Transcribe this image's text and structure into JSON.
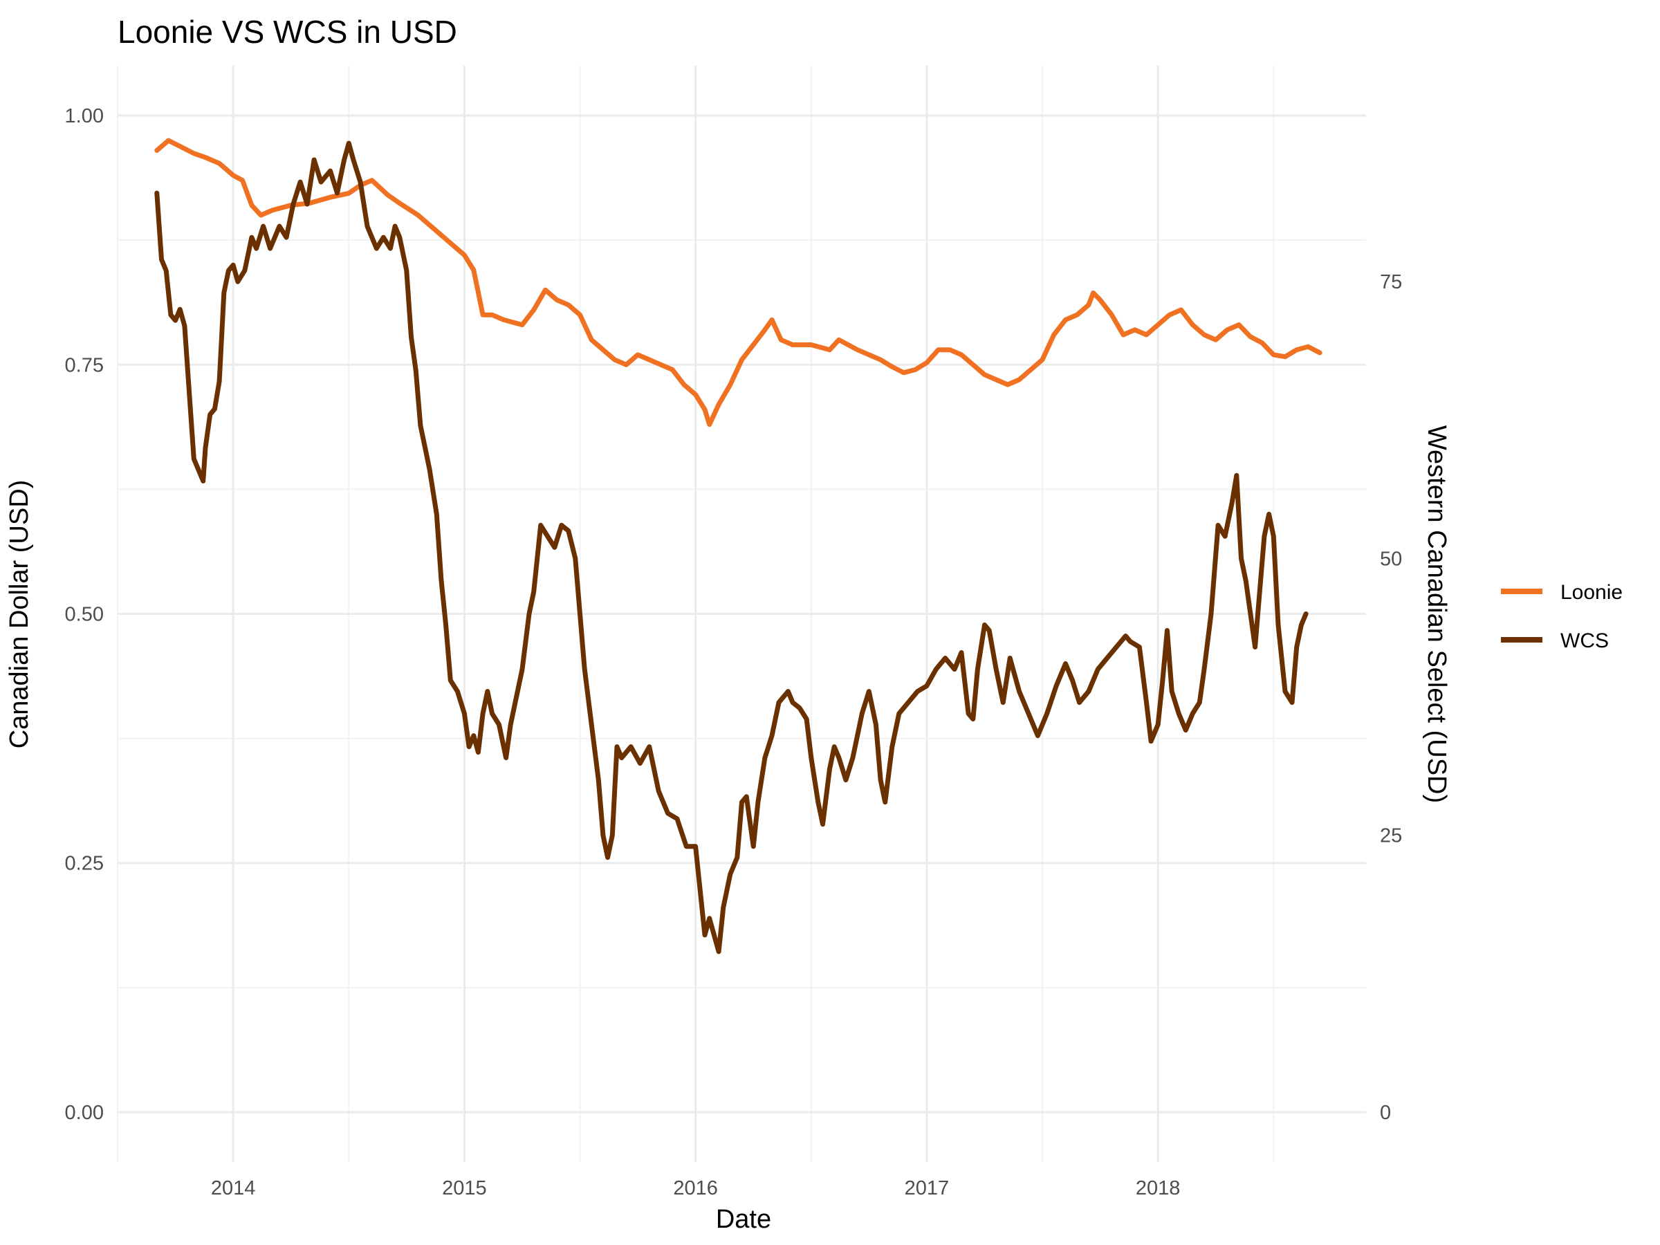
{
  "chart_data": {
    "type": "line",
    "title": "Loonie VS WCS in USD",
    "xlabel": "Date",
    "ylabel": "Canadian Dollar (USD)",
    "ylabel_right": "Western Canadian Select (USD)",
    "x_ticks": [
      "2014",
      "2015",
      "2016",
      "2017",
      "2018"
    ],
    "y_ticks_left": [
      "0.00",
      "0.25",
      "0.50",
      "0.75",
      "1.00"
    ],
    "y_ticks_right": [
      "0",
      "25",
      "50",
      "75"
    ],
    "xlim": [
      2013.5,
      2018.9
    ],
    "ylim_left": [
      -0.05,
      1.05
    ],
    "ylim_right": [
      -4.5,
      94.5
    ],
    "grid": true,
    "legend_position": "right",
    "series": [
      {
        "name": "Loonie",
        "axis": "left",
        "color": "#f07122",
        "points": [
          [
            2013.67,
            0.965
          ],
          [
            2013.72,
            0.975
          ],
          [
            2013.78,
            0.968
          ],
          [
            2013.83,
            0.962
          ],
          [
            2013.88,
            0.958
          ],
          [
            2013.94,
            0.952
          ],
          [
            2014.0,
            0.94
          ],
          [
            2014.04,
            0.935
          ],
          [
            2014.08,
            0.91
          ],
          [
            2014.12,
            0.9
          ],
          [
            2014.17,
            0.905
          ],
          [
            2014.25,
            0.91
          ],
          [
            2014.33,
            0.912
          ],
          [
            2014.42,
            0.918
          ],
          [
            2014.5,
            0.922
          ],
          [
            2014.55,
            0.93
          ],
          [
            2014.6,
            0.935
          ],
          [
            2014.67,
            0.92
          ],
          [
            2014.72,
            0.912
          ],
          [
            2014.8,
            0.9
          ],
          [
            2014.85,
            0.89
          ],
          [
            2014.9,
            0.88
          ],
          [
            2015.0,
            0.86
          ],
          [
            2015.04,
            0.845
          ],
          [
            2015.08,
            0.8
          ],
          [
            2015.12,
            0.8
          ],
          [
            2015.17,
            0.795
          ],
          [
            2015.25,
            0.79
          ],
          [
            2015.3,
            0.805
          ],
          [
            2015.35,
            0.825
          ],
          [
            2015.4,
            0.815
          ],
          [
            2015.45,
            0.81
          ],
          [
            2015.5,
            0.8
          ],
          [
            2015.55,
            0.775
          ],
          [
            2015.6,
            0.765
          ],
          [
            2015.65,
            0.755
          ],
          [
            2015.7,
            0.75
          ],
          [
            2015.75,
            0.76
          ],
          [
            2015.8,
            0.755
          ],
          [
            2015.85,
            0.75
          ],
          [
            2015.9,
            0.745
          ],
          [
            2015.95,
            0.73
          ],
          [
            2016.0,
            0.72
          ],
          [
            2016.04,
            0.705
          ],
          [
            2016.06,
            0.69
          ],
          [
            2016.1,
            0.71
          ],
          [
            2016.15,
            0.73
          ],
          [
            2016.2,
            0.755
          ],
          [
            2016.25,
            0.77
          ],
          [
            2016.3,
            0.785
          ],
          [
            2016.33,
            0.795
          ],
          [
            2016.37,
            0.775
          ],
          [
            2016.42,
            0.77
          ],
          [
            2016.5,
            0.77
          ],
          [
            2016.58,
            0.765
          ],
          [
            2016.62,
            0.775
          ],
          [
            2016.7,
            0.765
          ],
          [
            2016.75,
            0.76
          ],
          [
            2016.8,
            0.755
          ],
          [
            2016.85,
            0.748
          ],
          [
            2016.9,
            0.742
          ],
          [
            2016.95,
            0.745
          ],
          [
            2017.0,
            0.752
          ],
          [
            2017.05,
            0.765
          ],
          [
            2017.1,
            0.765
          ],
          [
            2017.15,
            0.76
          ],
          [
            2017.2,
            0.75
          ],
          [
            2017.25,
            0.74
          ],
          [
            2017.3,
            0.735
          ],
          [
            2017.35,
            0.73
          ],
          [
            2017.4,
            0.735
          ],
          [
            2017.45,
            0.745
          ],
          [
            2017.5,
            0.755
          ],
          [
            2017.55,
            0.78
          ],
          [
            2017.6,
            0.795
          ],
          [
            2017.65,
            0.8
          ],
          [
            2017.7,
            0.81
          ],
          [
            2017.72,
            0.822
          ],
          [
            2017.75,
            0.815
          ],
          [
            2017.8,
            0.8
          ],
          [
            2017.85,
            0.78
          ],
          [
            2017.9,
            0.785
          ],
          [
            2017.95,
            0.78
          ],
          [
            2018.0,
            0.79
          ],
          [
            2018.05,
            0.8
          ],
          [
            2018.1,
            0.805
          ],
          [
            2018.15,
            0.79
          ],
          [
            2018.2,
            0.78
          ],
          [
            2018.25,
            0.775
          ],
          [
            2018.3,
            0.785
          ],
          [
            2018.35,
            0.79
          ],
          [
            2018.4,
            0.778
          ],
          [
            2018.45,
            0.772
          ],
          [
            2018.5,
            0.76
          ],
          [
            2018.55,
            0.758
          ],
          [
            2018.6,
            0.765
          ],
          [
            2018.65,
            0.768
          ],
          [
            2018.7,
            0.762
          ]
        ]
      },
      {
        "name": "WCS",
        "axis": "right",
        "color": "#6b3000",
        "points": [
          [
            2013.67,
            83.0
          ],
          [
            2013.69,
            77.0
          ],
          [
            2013.71,
            76.0
          ],
          [
            2013.73,
            72.0
          ],
          [
            2013.75,
            71.5
          ],
          [
            2013.77,
            72.5
          ],
          [
            2013.79,
            71.0
          ],
          [
            2013.81,
            65.0
          ],
          [
            2013.83,
            59.0
          ],
          [
            2013.85,
            58.0
          ],
          [
            2013.87,
            57.0
          ],
          [
            2013.88,
            60.0
          ],
          [
            2013.9,
            63.0
          ],
          [
            2013.92,
            63.5
          ],
          [
            2013.94,
            66.0
          ],
          [
            2013.96,
            74.0
          ],
          [
            2013.98,
            76.0
          ],
          [
            2014.0,
            76.5
          ],
          [
            2014.02,
            75.0
          ],
          [
            2014.05,
            76.0
          ],
          [
            2014.08,
            79.0
          ],
          [
            2014.1,
            78.0
          ],
          [
            2014.13,
            80.0
          ],
          [
            2014.16,
            78.0
          ],
          [
            2014.2,
            80.0
          ],
          [
            2014.23,
            79.0
          ],
          [
            2014.26,
            82.0
          ],
          [
            2014.29,
            84.0
          ],
          [
            2014.32,
            82.0
          ],
          [
            2014.35,
            86.0
          ],
          [
            2014.38,
            84.0
          ],
          [
            2014.42,
            85.0
          ],
          [
            2014.45,
            83.0
          ],
          [
            2014.48,
            86.0
          ],
          [
            2014.5,
            87.5
          ],
          [
            2014.52,
            86.0
          ],
          [
            2014.55,
            84.0
          ],
          [
            2014.58,
            80.0
          ],
          [
            2014.62,
            78.0
          ],
          [
            2014.65,
            79.0
          ],
          [
            2014.68,
            78.0
          ],
          [
            2014.7,
            80.0
          ],
          [
            2014.72,
            79.0
          ],
          [
            2014.75,
            76.0
          ],
          [
            2014.77,
            70.0
          ],
          [
            2014.79,
            67.0
          ],
          [
            2014.81,
            62.0
          ],
          [
            2014.83,
            60.0
          ],
          [
            2014.85,
            58.0
          ],
          [
            2014.88,
            54.0
          ],
          [
            2014.9,
            48.0
          ],
          [
            2014.92,
            44.0
          ],
          [
            2014.94,
            39.0
          ],
          [
            2014.97,
            38.0
          ],
          [
            2015.0,
            36.0
          ],
          [
            2015.02,
            33.0
          ],
          [
            2015.04,
            34.0
          ],
          [
            2015.06,
            32.5
          ],
          [
            2015.08,
            36.0
          ],
          [
            2015.1,
            38.0
          ],
          [
            2015.12,
            36.0
          ],
          [
            2015.15,
            35.0
          ],
          [
            2015.18,
            32.0
          ],
          [
            2015.2,
            35.0
          ],
          [
            2015.22,
            37.0
          ],
          [
            2015.25,
            40.0
          ],
          [
            2015.28,
            45.0
          ],
          [
            2015.3,
            47.0
          ],
          [
            2015.33,
            53.0
          ],
          [
            2015.36,
            52.0
          ],
          [
            2015.39,
            51.0
          ],
          [
            2015.42,
            53.0
          ],
          [
            2015.45,
            52.5
          ],
          [
            2015.48,
            50.0
          ],
          [
            2015.5,
            45.0
          ],
          [
            2015.52,
            40.0
          ],
          [
            2015.55,
            35.0
          ],
          [
            2015.58,
            30.0
          ],
          [
            2015.6,
            25.0
          ],
          [
            2015.62,
            23.0
          ],
          [
            2015.64,
            25.0
          ],
          [
            2015.66,
            33.0
          ],
          [
            2015.68,
            32.0
          ],
          [
            2015.72,
            33.0
          ],
          [
            2015.76,
            31.5
          ],
          [
            2015.8,
            33.0
          ],
          [
            2015.84,
            29.0
          ],
          [
            2015.88,
            27.0
          ],
          [
            2015.92,
            26.5
          ],
          [
            2015.96,
            24.0
          ],
          [
            2016.0,
            24.0
          ],
          [
            2016.02,
            20.0
          ],
          [
            2016.04,
            16.0
          ],
          [
            2016.06,
            17.5
          ],
          [
            2016.08,
            16.0
          ],
          [
            2016.1,
            14.5
          ],
          [
            2016.12,
            18.5
          ],
          [
            2016.15,
            21.5
          ],
          [
            2016.18,
            23.0
          ],
          [
            2016.2,
            28.0
          ],
          [
            2016.22,
            28.5
          ],
          [
            2016.25,
            24.0
          ],
          [
            2016.27,
            28.0
          ],
          [
            2016.3,
            32.0
          ],
          [
            2016.33,
            34.0
          ],
          [
            2016.36,
            37.0
          ],
          [
            2016.4,
            38.0
          ],
          [
            2016.42,
            37.0
          ],
          [
            2016.45,
            36.5
          ],
          [
            2016.48,
            35.5
          ],
          [
            2016.5,
            32.0
          ],
          [
            2016.53,
            28.0
          ],
          [
            2016.55,
            26.0
          ],
          [
            2016.58,
            31.0
          ],
          [
            2016.6,
            33.0
          ],
          [
            2016.62,
            32.0
          ],
          [
            2016.65,
            30.0
          ],
          [
            2016.68,
            32.0
          ],
          [
            2016.72,
            36.0
          ],
          [
            2016.75,
            38.0
          ],
          [
            2016.78,
            35.0
          ],
          [
            2016.8,
            30.0
          ],
          [
            2016.82,
            28.0
          ],
          [
            2016.85,
            33.0
          ],
          [
            2016.88,
            36.0
          ],
          [
            2016.92,
            37.0
          ],
          [
            2016.96,
            38.0
          ],
          [
            2017.0,
            38.5
          ],
          [
            2017.04,
            40.0
          ],
          [
            2017.08,
            41.0
          ],
          [
            2017.12,
            40.0
          ],
          [
            2017.15,
            41.5
          ],
          [
            2017.18,
            36.0
          ],
          [
            2017.2,
            35.5
          ],
          [
            2017.22,
            40.0
          ],
          [
            2017.25,
            44.0
          ],
          [
            2017.27,
            43.5
          ],
          [
            2017.3,
            40.0
          ],
          [
            2017.33,
            37.0
          ],
          [
            2017.36,
            41.0
          ],
          [
            2017.4,
            38.0
          ],
          [
            2017.44,
            36.0
          ],
          [
            2017.48,
            34.0
          ],
          [
            2017.52,
            36.0
          ],
          [
            2017.56,
            38.5
          ],
          [
            2017.6,
            40.5
          ],
          [
            2017.63,
            39.0
          ],
          [
            2017.66,
            37.0
          ],
          [
            2017.7,
            38.0
          ],
          [
            2017.74,
            40.0
          ],
          [
            2017.78,
            41.0
          ],
          [
            2017.82,
            42.0
          ],
          [
            2017.86,
            43.0
          ],
          [
            2017.88,
            42.5
          ],
          [
            2017.92,
            42.0
          ],
          [
            2017.95,
            37.0
          ],
          [
            2017.97,
            33.5
          ],
          [
            2018.0,
            35.0
          ],
          [
            2018.02,
            39.0
          ],
          [
            2018.04,
            43.5
          ],
          [
            2018.06,
            38.0
          ],
          [
            2018.09,
            36.0
          ],
          [
            2018.12,
            34.5
          ],
          [
            2018.15,
            36.0
          ],
          [
            2018.18,
            37.0
          ],
          [
            2018.2,
            40.0
          ],
          [
            2018.23,
            45.0
          ],
          [
            2018.26,
            53.0
          ],
          [
            2018.29,
            52.0
          ],
          [
            2018.32,
            55.0
          ],
          [
            2018.34,
            57.5
          ],
          [
            2018.36,
            50.0
          ],
          [
            2018.38,
            48.0
          ],
          [
            2018.4,
            45.0
          ],
          [
            2018.42,
            42.0
          ],
          [
            2018.44,
            47.0
          ],
          [
            2018.46,
            52.0
          ],
          [
            2018.48,
            54.0
          ],
          [
            2018.5,
            52.0
          ],
          [
            2018.52,
            44.0
          ],
          [
            2018.55,
            38.0
          ],
          [
            2018.58,
            37.0
          ],
          [
            2018.6,
            42.0
          ],
          [
            2018.62,
            44.0
          ],
          [
            2018.64,
            45.0
          ]
        ]
      }
    ]
  }
}
